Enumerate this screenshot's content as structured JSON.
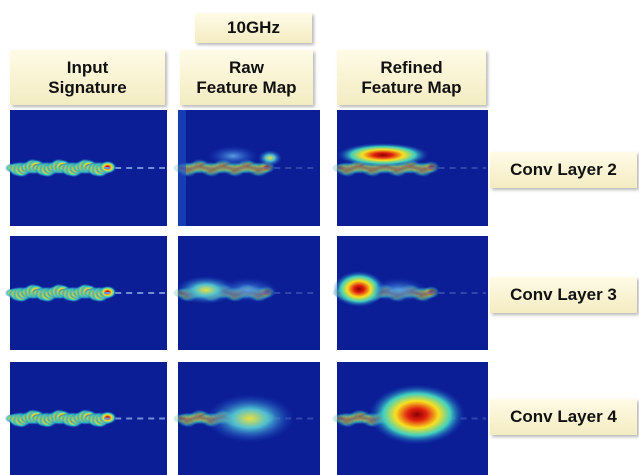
{
  "header": {
    "frequency": "10GHz"
  },
  "columns": [
    [
      "Input",
      "Signature"
    ],
    [
      "Raw",
      "Feature Map"
    ],
    [
      "Refined",
      "Feature Map"
    ]
  ],
  "rows": [
    "Conv Layer 2",
    "Conv Layer 3",
    "Conv Layer 4"
  ]
}
